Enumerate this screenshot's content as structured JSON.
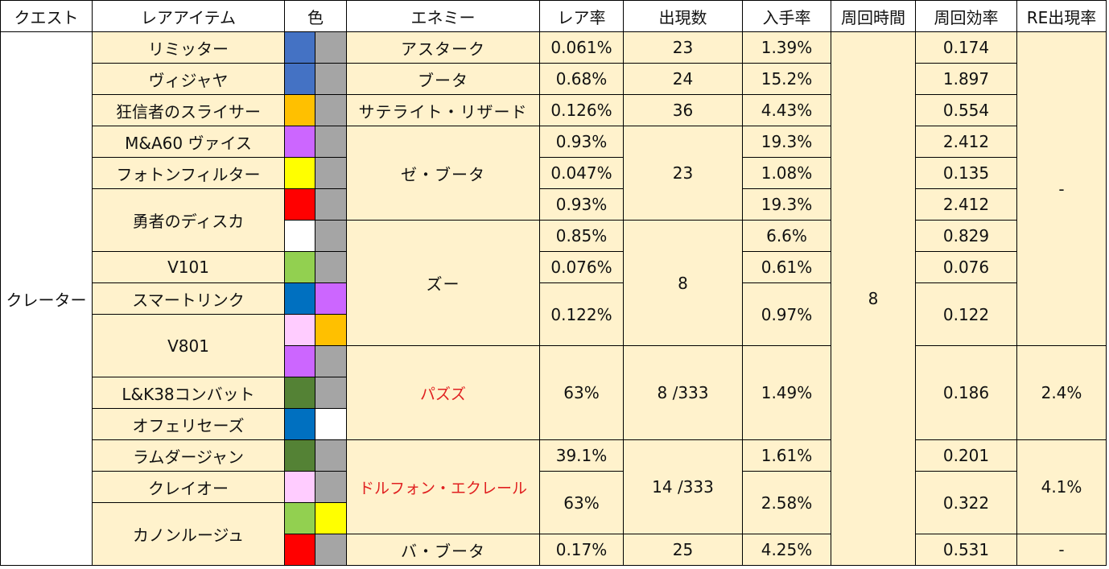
{
  "headers": [
    "クエスト",
    "レアアイテム",
    "色",
    "エネミー",
    "レア率",
    "出現数",
    "入手率",
    "周回時間",
    "周回効率",
    "RE出現率"
  ],
  "quest": "クレーター",
  "items": [
    "リミッター",
    "ヴィジャヤ",
    "狂信者のスライサー",
    "M&A60 ヴァイス",
    "フォトンフィルター",
    "勇者のディスカ",
    "V101",
    "スマートリンク",
    "V801",
    "L&K38コンバット",
    "オフェリセーズ",
    "ラムダージャン",
    "クレイオー",
    "カノンルージュ"
  ],
  "enemies": [
    "アスターク",
    "ブータ",
    "サテライト・リザード",
    "ゼ・ブータ",
    "ズー",
    "パズズ",
    "ドルフォン・エクレール",
    "バ・ブータ"
  ],
  "rare_rates": [
    "0.061%",
    "0.68%",
    "0.126%",
    "0.93%",
    "0.047%",
    "0.93%",
    "0.85%",
    "0.076%",
    "0.122%",
    "63%",
    "39.1%",
    "63%",
    "0.17%"
  ],
  "counts": [
    "23",
    "24",
    "36",
    "23",
    "8",
    "8 /333",
    "14 /333",
    "25"
  ],
  "get_rates": [
    "1.39%",
    "15.2%",
    "4.43%",
    "19.3%",
    "1.08%",
    "19.3%",
    "6.6%",
    "0.61%",
    "0.97%",
    "1.49%",
    "1.61%",
    "2.58%",
    "4.25%"
  ],
  "loop_time": "8",
  "efficiency": [
    "0.174",
    "1.897",
    "0.554",
    "2.412",
    "0.135",
    "2.412",
    "0.829",
    "0.076",
    "0.122",
    "0.186",
    "0.201",
    "0.322",
    "0.531"
  ],
  "re_rates": [
    "-",
    "2.4%",
    "4.1%",
    "-"
  ],
  "colors": {
    "blue": "#4472C4",
    "gray": "#A5A5A5",
    "orange": "#FFC000",
    "purple": "#CC66FF",
    "yellow": "#FFFF00",
    "red": "#FF0000",
    "white": "#FFFFFF",
    "lightgreen": "#92D050",
    "blue2": "#0070C0",
    "pink": "#FFCCFF",
    "darkgreen": "#548235"
  }
}
